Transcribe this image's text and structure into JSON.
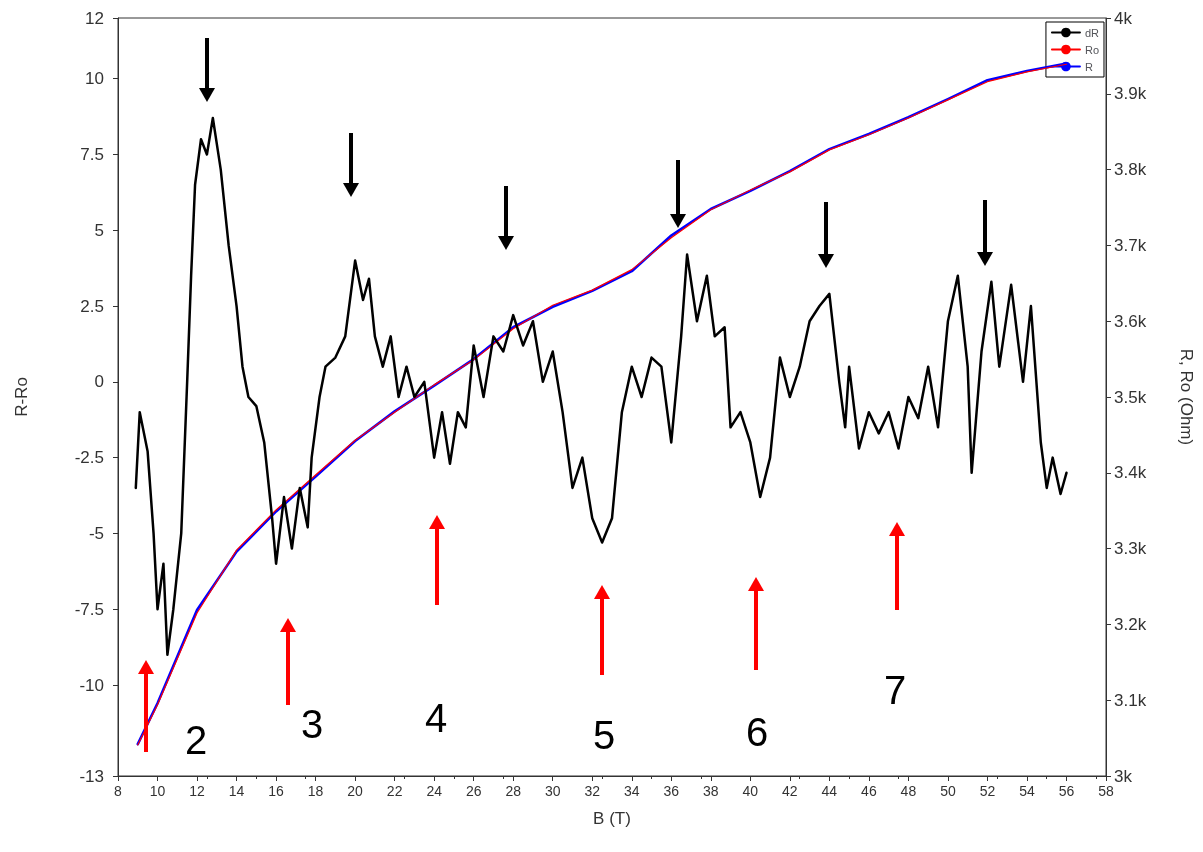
{
  "chart_data": {
    "type": "line",
    "xlabel": "B (T)",
    "ylabel": "R-Ro",
    "y2label": "R, Ro (Ohm)",
    "xlim": [
      8,
      58
    ],
    "xticks": [
      8,
      10,
      12,
      14,
      16,
      18,
      20,
      22,
      24,
      26,
      28,
      30,
      32,
      34,
      36,
      38,
      40,
      42,
      44,
      46,
      48,
      50,
      52,
      54,
      56,
      58
    ],
    "ylim": [
      -13,
      12
    ],
    "yticks": [
      -13,
      -10,
      -7.5,
      -5,
      -2.5,
      0,
      2.5,
      5,
      7.5,
      10,
      12
    ],
    "y2lim": [
      3000,
      4000
    ],
    "y2ticks": [
      {
        "value": 3000,
        "label": "3k"
      },
      {
        "value": 3100,
        "label": "3.1k"
      },
      {
        "value": 3200,
        "label": "3.2k"
      },
      {
        "value": 3300,
        "label": "3.3k"
      },
      {
        "value": 3400,
        "label": "3.4k"
      },
      {
        "value": 3500,
        "label": "3.5k"
      },
      {
        "value": 3600,
        "label": "3.6k"
      },
      {
        "value": 3700,
        "label": "3.7k"
      },
      {
        "value": 3800,
        "label": "3.8k"
      },
      {
        "value": 3900,
        "label": "3.9k"
      },
      {
        "value": 4000,
        "label": "4k"
      }
    ],
    "grid": false,
    "legend": "top right",
    "marker": "none",
    "line_style": "solid",
    "series": [
      {
        "name": "dR",
        "color": "#000000",
        "x": [
          8.9,
          9.1,
          9.5,
          9.8,
          10.0,
          10.3,
          10.5,
          10.8,
          11.2,
          11.5,
          11.7,
          11.9,
          12.2,
          12.5,
          12.8,
          13.2,
          13.6,
          14.0,
          14.3,
          14.6,
          15.0,
          15.4,
          15.8,
          16.0,
          16.4,
          16.8,
          17.2,
          17.6,
          17.8,
          18.2,
          18.5,
          19.0,
          19.5,
          20.0,
          20.4,
          20.7,
          21.0,
          21.4,
          21.8,
          22.2,
          22.6,
          23.0,
          23.5,
          24.0,
          24.4,
          24.8,
          25.2,
          25.6,
          26.0,
          26.5,
          27.0,
          27.5,
          28.0,
          28.5,
          29.0,
          29.5,
          30.0,
          30.5,
          31.0,
          31.5,
          32.0,
          32.5,
          33.0,
          33.5,
          34.0,
          34.5,
          35.0,
          35.5,
          36.0,
          36.5,
          36.8,
          37.3,
          37.8,
          38.2,
          38.7,
          39.0,
          39.5,
          40.0,
          40.5,
          41.0,
          41.5,
          42.0,
          42.5,
          43.0,
          43.5,
          44.0,
          44.5,
          44.8,
          45.0,
          45.5,
          46.0,
          46.5,
          47.0,
          47.5,
          48.0,
          48.5,
          49.0,
          49.5,
          50.0,
          50.5,
          51.0,
          51.2,
          51.7,
          52.2,
          52.6,
          53.2,
          53.8,
          54.2,
          54.7,
          55.0,
          55.3,
          55.7,
          56.0
        ],
        "values": [
          -3.5,
          -1,
          -2.3,
          -5,
          -7.5,
          -6,
          -9,
          -7.5,
          -5,
          0,
          3.5,
          6.5,
          8,
          7.5,
          8.7,
          7,
          4.5,
          2.5,
          0.5,
          -0.5,
          -0.8,
          -2,
          -4.5,
          -6,
          -3.8,
          -5.5,
          -3.5,
          -4.8,
          -2.5,
          -0.5,
          0.5,
          0.8,
          1.5,
          4,
          2.7,
          3.4,
          1.5,
          0.5,
          1.5,
          -0.5,
          0.5,
          -0.5,
          0,
          -2.5,
          -1,
          -2.7,
          -1,
          -1.5,
          1.2,
          -0.5,
          1.5,
          1,
          2.2,
          1.2,
          2,
          0,
          1,
          -1,
          -3.5,
          -2.5,
          -4.5,
          -5.3,
          -4.5,
          -1,
          0.5,
          -0.5,
          0.8,
          0.5,
          -2,
          1.5,
          4.2,
          2,
          3.5,
          1.5,
          1.8,
          -1.5,
          -1,
          -2,
          -3.8,
          -2.5,
          0.8,
          -0.5,
          0.5,
          2,
          2.5,
          2.9,
          0,
          -1.5,
          0.5,
          -2.2,
          -1,
          -1.7,
          -1,
          -2.2,
          -0.5,
          -1.2,
          0.5,
          -1.5,
          2,
          3.5,
          0.5,
          -3,
          1,
          3.3,
          0.5,
          3.2,
          0,
          2.5,
          -2,
          -3.5,
          -2.5,
          -3.7,
          -3
        ]
      },
      {
        "name": "Ro",
        "color": "#ff0000",
        "axis": "y2",
        "x": [
          9,
          10,
          12,
          14,
          16,
          18,
          20,
          22,
          24,
          26,
          28,
          30,
          32,
          34,
          36,
          38,
          40,
          42,
          44,
          46,
          48,
          50,
          52,
          54,
          56
        ],
        "values": [
          3041,
          3094,
          3215,
          3298,
          3351,
          3397,
          3443,
          3480,
          3516,
          3549,
          3590,
          3621,
          3641,
          3668,
          3710,
          3747,
          3773,
          3797,
          3826,
          3846,
          3868,
          3892,
          3916,
          3929,
          3939
        ]
      },
      {
        "name": "R",
        "color": "#0000ff",
        "axis": "y2",
        "x": [
          9,
          10,
          12,
          14,
          16,
          18,
          20,
          22,
          24,
          26,
          28,
          30,
          32,
          34,
          36,
          38,
          40,
          42,
          44,
          46,
          48,
          50,
          52,
          54,
          56
        ],
        "values": [
          3042,
          3096,
          3219,
          3296,
          3349,
          3395,
          3442,
          3481,
          3515,
          3550,
          3592,
          3619,
          3640,
          3666,
          3713,
          3748,
          3772,
          3798,
          3827,
          3847,
          3869,
          3893,
          3918,
          3930,
          3940
        ]
      }
    ],
    "annotations": [
      "2",
      "3",
      "4",
      "5",
      "6",
      "7"
    ]
  }
}
